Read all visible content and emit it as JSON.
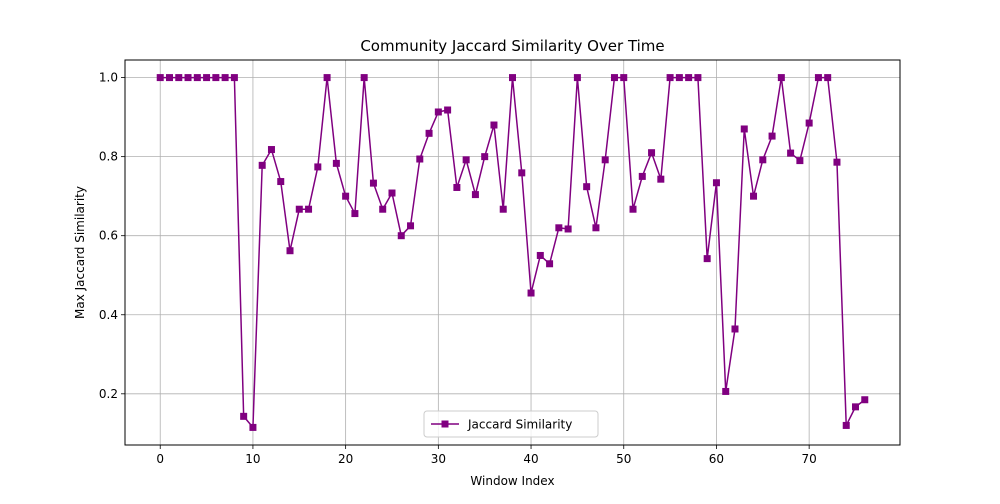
{
  "chart_data": {
    "type": "line",
    "title": "Community Jaccard Similarity Over Time",
    "xlabel": "Window Index",
    "ylabel": "Max Jaccard Similarity",
    "xlim": [
      -3.8,
      79.8
    ],
    "ylim": [
      0.0705,
      1.0445
    ],
    "xticks": [
      0,
      10,
      20,
      30,
      40,
      50,
      60,
      70
    ],
    "yticks": [
      0.2,
      0.4,
      0.6,
      0.8,
      1.0
    ],
    "xtick_labels": [
      "0",
      "10",
      "20",
      "30",
      "40",
      "50",
      "60",
      "70"
    ],
    "ytick_labels": [
      "0.2",
      "0.4",
      "0.6",
      "0.8",
      "1.0"
    ],
    "grid": true,
    "legend_position": "lower-center",
    "colors": {
      "series": "#800080",
      "grid": "#b0b0b0",
      "axes": "#000000"
    },
    "series": [
      {
        "name": "Jaccard Similarity",
        "marker": "square",
        "x": [
          0,
          1,
          2,
          3,
          4,
          5,
          6,
          7,
          8,
          9,
          10,
          11,
          12,
          13,
          14,
          15,
          16,
          17,
          18,
          19,
          20,
          21,
          22,
          23,
          24,
          25,
          26,
          27,
          28,
          29,
          30,
          31,
          32,
          33,
          34,
          35,
          36,
          37,
          38,
          39,
          40,
          41,
          42,
          43,
          44,
          45,
          46,
          47,
          48,
          49,
          50,
          51,
          52,
          53,
          54,
          55,
          56,
          57,
          58,
          59,
          60,
          61,
          62,
          63,
          64,
          65,
          66,
          67,
          68,
          69,
          70,
          71,
          72,
          73,
          74,
          75,
          76
        ],
        "values": [
          1.0,
          1.0,
          1.0,
          1.0,
          1.0,
          1.0,
          1.0,
          1.0,
          1.0,
          0.143,
          0.115,
          0.778,
          0.818,
          0.737,
          0.562,
          0.667,
          0.667,
          0.774,
          1.0,
          0.783,
          0.7,
          0.656,
          1.0,
          0.733,
          0.667,
          0.708,
          0.6,
          0.625,
          0.794,
          0.859,
          0.913,
          0.918,
          0.722,
          0.792,
          0.704,
          0.8,
          0.88,
          0.667,
          1.0,
          0.759,
          0.455,
          0.55,
          0.529,
          0.62,
          0.617,
          1.0,
          0.724,
          0.62,
          0.792,
          1.0,
          1.0,
          0.667,
          0.75,
          0.81,
          0.743,
          1.0,
          1.0,
          1.0,
          1.0,
          0.542,
          0.734,
          0.206,
          0.364,
          0.87,
          0.7,
          0.792,
          0.852,
          1.0,
          0.809,
          0.79,
          0.885,
          1.0,
          1.0,
          0.786,
          0.12,
          0.167,
          0.185
        ]
      }
    ]
  }
}
